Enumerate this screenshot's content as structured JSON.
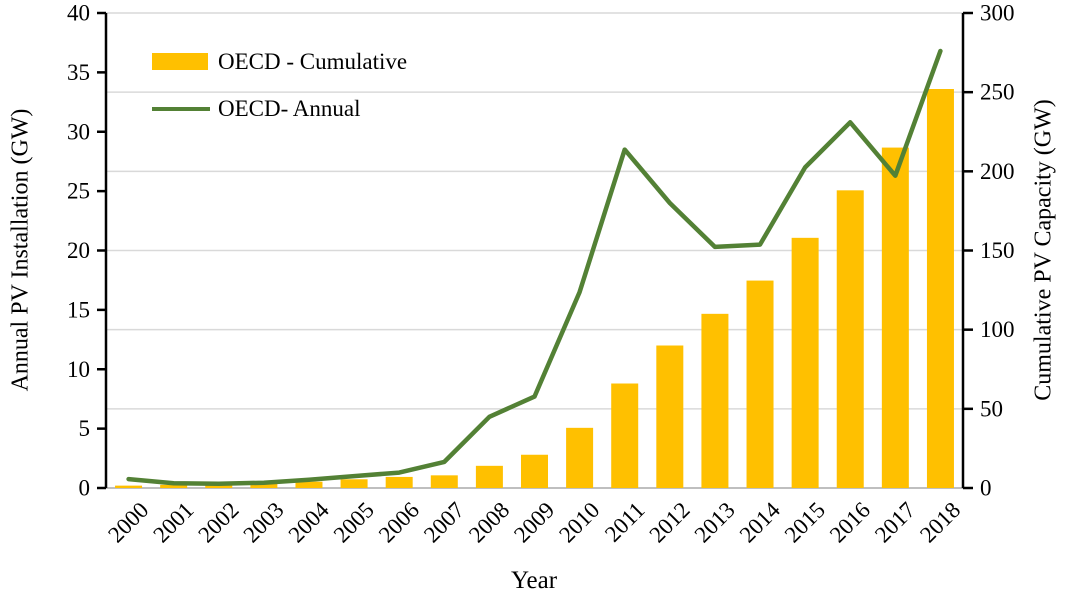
{
  "chart": {
    "left_axis_title": "Annual PV Installation (GW)",
    "right_axis_title": "Cumulative PV Capacity (GW)",
    "x_axis_title": "Year"
  },
  "chart_data": {
    "type": "combo",
    "title": "",
    "xlabel": "Year",
    "categories": [
      "2000",
      "2001",
      "2002",
      "2003",
      "2004",
      "2005",
      "2006",
      "2007",
      "2008",
      "2009",
      "2010",
      "2011",
      "2012",
      "2013",
      "2014",
      "2015",
      "2016",
      "2017",
      "2018"
    ],
    "series": [
      {
        "name": "OECD - Cumulative",
        "type": "bar",
        "axis": "right",
        "color": "#FFC000",
        "values": [
          1.5,
          2,
          2.5,
          3,
          4,
          5.5,
          7,
          8,
          14,
          21,
          38,
          66,
          90,
          110,
          131,
          158,
          188,
          215,
          252
        ]
      },
      {
        "name": "OECD- Annual",
        "type": "line",
        "axis": "left",
        "color": "#538135",
        "values": [
          0.75,
          0.4,
          0.35,
          0.45,
          0.7,
          1.0,
          1.3,
          2.2,
          6.0,
          7.7,
          16.5,
          28.5,
          24.0,
          20.3,
          20.5,
          27.0,
          30.8,
          26.3,
          36.8
        ]
      }
    ],
    "left_axis": {
      "label": "Annual PV Installation (GW)",
      "min": 0,
      "max": 40,
      "ticks": [
        0,
        5,
        10,
        15,
        20,
        25,
        30,
        35,
        40
      ]
    },
    "right_axis": {
      "label": "Cumulative PV Capacity (GW)",
      "min": 0,
      "max": 300,
      "ticks": [
        0,
        50,
        100,
        150,
        200,
        250,
        300
      ]
    },
    "grid": "horizontal gridlines at right-axis 50 GW intervals",
    "legend_position": "top-left inside plot",
    "colors": {
      "grid": "#d9d9d9",
      "bottom_axis": "#bfbfbf",
      "axis": "#000000",
      "bar": "#FFC000",
      "line": "#538135"
    }
  }
}
